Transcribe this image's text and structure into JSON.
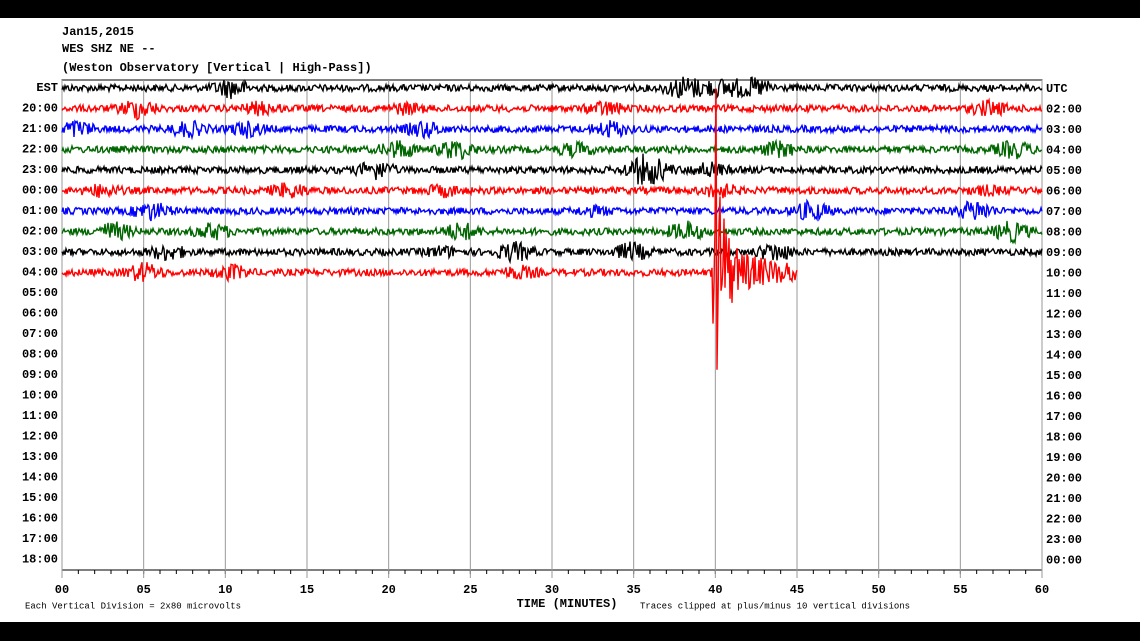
{
  "chart_data": {
    "type": "helicorder",
    "title_lines": [
      "Jan15,2015",
      "WES SHZ NE --",
      "(Weston Observatory [Vertical | High-Pass])"
    ],
    "left_labels": [
      "EST",
      "20:00",
      "21:00",
      "22:00",
      "23:00",
      "00:00",
      "01:00",
      "02:00",
      "03:00",
      "04:00",
      "05:00",
      "06:00",
      "07:00",
      "08:00",
      "09:00",
      "10:00",
      "11:00",
      "12:00",
      "13:00",
      "14:00",
      "15:00",
      "16:00",
      "17:00",
      "18:00"
    ],
    "right_labels": [
      "UTC",
      "02:00",
      "03:00",
      "04:00",
      "05:00",
      "06:00",
      "07:00",
      "08:00",
      "09:00",
      "10:00",
      "11:00",
      "12:00",
      "13:00",
      "14:00",
      "15:00",
      "16:00",
      "17:00",
      "18:00",
      "19:00",
      "20:00",
      "21:00",
      "22:00",
      "23:00",
      "00:00"
    ],
    "xlim": [
      0,
      60
    ],
    "xticks": [
      {
        "value": 0,
        "label": "00"
      },
      {
        "value": 5,
        "label": "05"
      },
      10,
      15,
      20,
      25,
      30,
      35,
      40,
      45,
      50,
      55,
      60
    ],
    "xlabel": "TIME (MINUTES)",
    "footnote_left": "Each Vertical Division = 2x80 microvolts",
    "footnote_right": "Traces clipped at plus/minus 10 vertical divisions",
    "colors": [
      "#000000",
      "#ff0000",
      "#0000ff",
      "#006600"
    ],
    "trace_end": [
      60,
      60,
      60,
      60,
      60,
      60,
      60,
      60,
      60,
      45
    ],
    "event_minute": 40
  }
}
